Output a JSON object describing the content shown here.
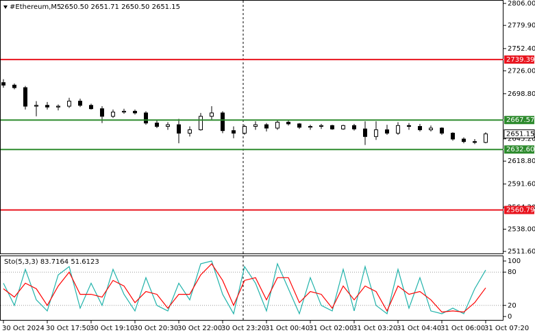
{
  "chart_data": [
    {
      "type": "candlestick",
      "title": "#Ethereum,M5",
      "ohlc_label": "2650.50 2651.71 2650.50 2651.15",
      "categories": [
        "30 Oct 2024",
        null,
        null,
        null,
        "30 Oct 17:50",
        null,
        null,
        null,
        "30 Oct 19:10",
        null,
        null,
        null,
        "30 Oct 20:30",
        null,
        null,
        null,
        "30 Oct 22:00",
        null,
        null,
        null,
        "30 Oct 23:20",
        null,
        null,
        null,
        "31 Oct 00:40",
        null,
        null,
        null,
        "31 Oct 02:00",
        null,
        null,
        null,
        "31 Oct 03:20",
        null,
        null,
        null,
        "31 Oct 04:40",
        null,
        null,
        null,
        "31 Oct 06:00",
        null,
        null,
        null,
        "31 Oct 07:20"
      ],
      "open": [
        2712,
        2709,
        2706,
        2684,
        2685,
        2683,
        2684,
        2690,
        2685,
        2681,
        2672,
        2677,
        2678,
        2676,
        2664,
        2660,
        2662,
        2652,
        2656,
        2672,
        2676,
        2655,
        2652,
        2660,
        2662,
        2658,
        2665,
        2663,
        2659,
        2660,
        2661,
        2657,
        2661,
        2657,
        2648,
        2656,
        2652,
        2661,
        2660,
        2656,
        2658,
        2652,
        2645,
        2642,
        2641
      ],
      "high": [
        2716,
        2711,
        2708,
        2690,
        2689,
        2686,
        2694,
        2693,
        2687,
        2684,
        2680,
        2681,
        2680,
        2678,
        2668,
        2665,
        2669,
        2660,
        2676,
        2684,
        2678,
        2660,
        2662,
        2666,
        2664,
        2668,
        2667,
        2664,
        2662,
        2663,
        2662,
        2662,
        2663,
        2666,
        2666,
        2662,
        2665,
        2664,
        2663,
        2661,
        2659,
        2653,
        2647,
        2645,
        2653
      ],
      "low": [
        2706,
        2704,
        2680,
        2672,
        2680,
        2679,
        2682,
        2683,
        2680,
        2664,
        2670,
        2675,
        2674,
        2662,
        2658,
        2656,
        2640,
        2648,
        2655,
        2668,
        2652,
        2646,
        2650,
        2656,
        2654,
        2656,
        2661,
        2657,
        2656,
        2657,
        2656,
        2656,
        2655,
        2638,
        2644,
        2650,
        2650,
        2656,
        2654,
        2654,
        2650,
        2643,
        2640,
        2639,
        2640
      ],
      "close": [
        2709,
        2706,
        2684,
        2685,
        2683,
        2684,
        2690,
        2685,
        2681,
        2672,
        2677,
        2678,
        2676,
        2664,
        2660,
        2662,
        2652,
        2656,
        2672,
        2676,
        2655,
        2652,
        2660,
        2662,
        2658,
        2665,
        2663,
        2659,
        2660,
        2661,
        2657,
        2661,
        2657,
        2648,
        2656,
        2652,
        2661,
        2660,
        2656,
        2658,
        2652,
        2645,
        2642,
        2641,
        2651.15
      ],
      "ylim": [
        2511.6,
        2806
      ],
      "yticks": [
        {
          "value": 2806,
          "label": "2806.00"
        },
        {
          "value": 2779.9,
          "label": "2779.90"
        },
        {
          "value": 2752.4,
          "label": "2752.40"
        },
        {
          "value": 2726,
          "label": "2726.00"
        },
        {
          "value": 2698.8,
          "label": "2698.80"
        },
        {
          "value": 2645.2,
          "label": "2645.20"
        },
        {
          "value": 2618.8,
          "label": "2618.80"
        },
        {
          "value": 2591.6,
          "label": "2591.60"
        },
        {
          "value": 2564.2,
          "label": "2564.20"
        },
        {
          "value": 2538,
          "label": "2538.00"
        },
        {
          "value": 2511.6,
          "label": "2511.60"
        }
      ],
      "levels": [
        {
          "price": 2739.39,
          "color": "#e8141e"
        },
        {
          "price": 2667.57,
          "color": "#2e8b2e"
        },
        {
          "price": {
            "value": 2632.6,
            "label": "2632.60"
          },
          "color": "#2e8b2e"
        },
        {
          "price": 2560.79,
          "color": "#e8141e"
        }
      ],
      "last_price": 2651.15
    },
    {
      "type": "line",
      "title": "Sto(5,3,3) 83.7164 51.6123",
      "series": [
        {
          "name": "Main",
          "color": "#20b2aa",
          "values": [
            60,
            20,
            85,
            30,
            10,
            75,
            90,
            15,
            60,
            20,
            85,
            40,
            10,
            70,
            20,
            10,
            60,
            30,
            95,
            100,
            40,
            5,
            90,
            60,
            10,
            95,
            50,
            5,
            70,
            20,
            10,
            85,
            10,
            90,
            20,
            5,
            85,
            15,
            70,
            10,
            5,
            15,
            5,
            50,
            83.7164
          ]
        },
        {
          "name": "Signal",
          "color": "#ff0000",
          "values": [
            50,
            35,
            60,
            50,
            20,
            55,
            80,
            40,
            40,
            35,
            65,
            55,
            25,
            45,
            40,
            15,
            40,
            40,
            75,
            95,
            65,
            20,
            65,
            70,
            30,
            70,
            70,
            25,
            45,
            40,
            15,
            55,
            30,
            55,
            45,
            10,
            55,
            40,
            45,
            30,
            8,
            10,
            8,
            25,
            51.6123
          ]
        }
      ],
      "ylim": [
        0,
        100
      ],
      "yticks": [
        100,
        80,
        20,
        0
      ]
    }
  ]
}
